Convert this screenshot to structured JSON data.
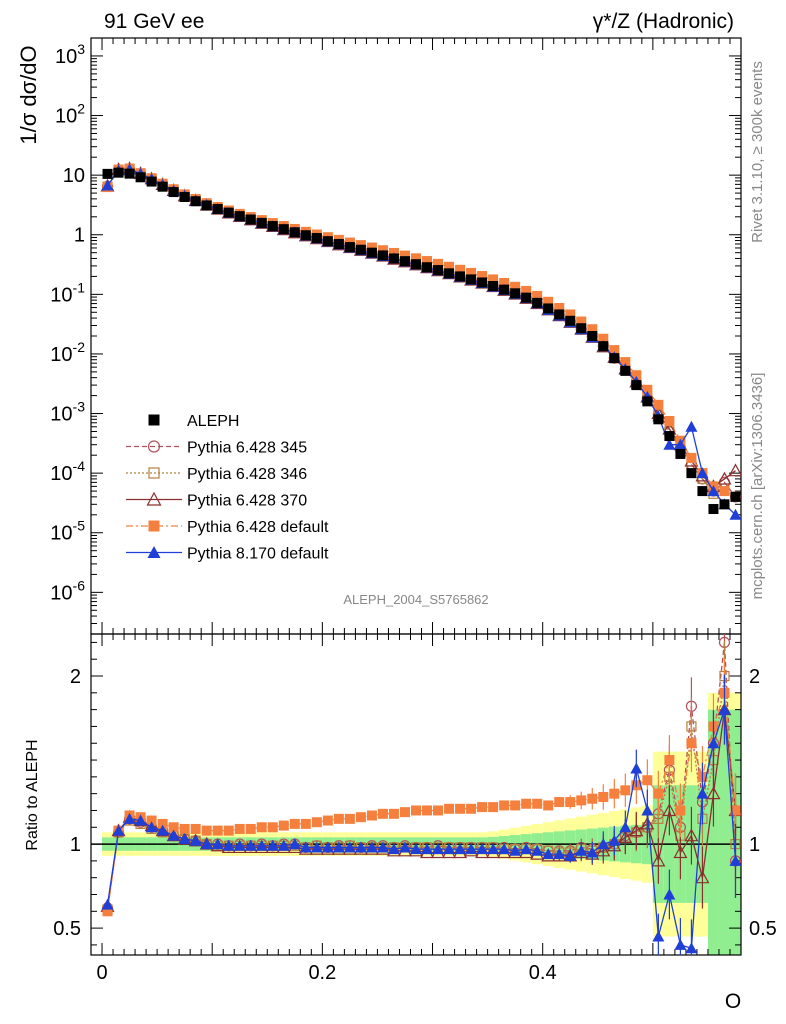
{
  "header": {
    "left": "91 GeV ee",
    "right": "γ*/Z (Hadronic)"
  },
  "side_labels": {
    "rivet": "Rivet 3.1.10, ≥ 300k events",
    "mcplots": "mcplots.cern.ch [arXiv:1306.3436]"
  },
  "watermark": "ALEPH_2004_S5765862",
  "chart_data": [
    {
      "type": "scatter",
      "title": "",
      "xlabel": "O",
      "ylabel": "1/σ dσ/dO",
      "yscale": "log",
      "xlim": [
        -0.01,
        0.58
      ],
      "ylim": [
        2e-07,
        2000
      ],
      "y_tick_labels": [
        "10^-6",
        "10^-5",
        "10^-4",
        "10^-3",
        "10^-2",
        "10^-1",
        "1",
        "10",
        "10^2",
        "10^3"
      ],
      "x_tick_labels": [
        "0",
        "0.2",
        "0.4"
      ],
      "legend_position": "lower-left",
      "x": [
        0.005,
        0.015,
        0.025,
        0.035,
        0.045,
        0.055,
        0.065,
        0.075,
        0.085,
        0.095,
        0.105,
        0.115,
        0.125,
        0.135,
        0.145,
        0.155,
        0.165,
        0.175,
        0.185,
        0.195,
        0.205,
        0.215,
        0.225,
        0.235,
        0.245,
        0.255,
        0.265,
        0.275,
        0.285,
        0.295,
        0.305,
        0.315,
        0.325,
        0.335,
        0.345,
        0.355,
        0.365,
        0.375,
        0.385,
        0.395,
        0.405,
        0.415,
        0.425,
        0.435,
        0.445,
        0.455,
        0.465,
        0.475,
        0.485,
        0.495,
        0.505,
        0.515,
        0.525,
        0.535,
        0.545,
        0.555,
        0.565,
        0.575
      ],
      "series": [
        {
          "name": "ALEPH",
          "values": [
            10.5,
            11.0,
            10.6,
            9.2,
            7.8,
            6.4,
            5.2,
            4.3,
            3.65,
            3.1,
            2.7,
            2.35,
            2.05,
            1.8,
            1.58,
            1.4,
            1.24,
            1.1,
            0.98,
            0.88,
            0.78,
            0.7,
            0.62,
            0.56,
            0.5,
            0.45,
            0.4,
            0.36,
            0.32,
            0.285,
            0.255,
            0.225,
            0.2,
            0.178,
            0.158,
            0.138,
            0.12,
            0.104,
            0.088,
            0.072,
            0.058,
            0.046,
            0.036,
            0.027,
            0.02,
            0.0135,
            0.0085,
            0.0052,
            0.003,
            0.0016,
            0.0008,
            0.00042,
            0.00021,
            0.0001,
            5e-05,
            2.5e-05,
            3e-05,
            4e-05
          ]
        },
        {
          "name": "Pythia 6.428 345",
          "values": [
            6.5,
            12.2,
            12.6,
            10.5,
            8.6,
            6.9,
            5.5,
            4.5,
            3.75,
            3.15,
            2.72,
            2.35,
            2.05,
            1.8,
            1.58,
            1.4,
            1.24,
            1.1,
            0.97,
            0.87,
            0.78,
            0.69,
            0.62,
            0.56,
            0.5,
            0.45,
            0.4,
            0.36,
            0.32,
            0.285,
            0.255,
            0.226,
            0.2,
            0.178,
            0.158,
            0.138,
            0.12,
            0.104,
            0.088,
            0.072,
            0.056,
            0.045,
            0.035,
            0.026,
            0.0195,
            0.0135,
            0.0085,
            0.0055,
            0.0032,
            0.0018,
            0.00095,
            0.0005,
            0.00026,
            0.00014,
            8e-05,
            5e-05,
            7e-05,
            4e-05
          ]
        },
        {
          "name": "Pythia 6.428 346",
          "values": [
            6.4,
            12.0,
            12.4,
            10.4,
            8.5,
            6.8,
            5.45,
            4.45,
            3.72,
            3.12,
            2.7,
            2.33,
            2.03,
            1.79,
            1.57,
            1.39,
            1.23,
            1.09,
            0.97,
            0.87,
            0.77,
            0.69,
            0.62,
            0.55,
            0.5,
            0.44,
            0.4,
            0.355,
            0.318,
            0.283,
            0.252,
            0.224,
            0.198,
            0.176,
            0.156,
            0.137,
            0.119,
            0.103,
            0.087,
            0.071,
            0.056,
            0.044,
            0.034,
            0.026,
            0.019,
            0.0132,
            0.0085,
            0.0054,
            0.0032,
            0.0018,
            0.00095,
            0.0005,
            0.00027,
            0.00014,
            8e-05,
            4.5e-05,
            5.5e-05,
            4e-05
          ]
        },
        {
          "name": "Pythia 6.428 370",
          "values": [
            6.6,
            12.5,
            12.9,
            10.7,
            8.7,
            7.0,
            5.55,
            4.5,
            3.75,
            3.15,
            2.7,
            2.33,
            2.03,
            1.78,
            1.56,
            1.38,
            1.22,
            1.08,
            0.96,
            0.86,
            0.77,
            0.68,
            0.61,
            0.55,
            0.49,
            0.44,
            0.39,
            0.352,
            0.314,
            0.28,
            0.25,
            0.222,
            0.196,
            0.174,
            0.155,
            0.135,
            0.117,
            0.101,
            0.086,
            0.07,
            0.055,
            0.044,
            0.034,
            0.026,
            0.019,
            0.0132,
            0.0088,
            0.0056,
            0.0034,
            0.0019,
            0.001,
            0.00055,
            0.0003,
            0.00016,
            9e-05,
            6e-05,
            8e-05,
            0.00011
          ]
        },
        {
          "name": "Pythia 6.428 default",
          "values": [
            6.3,
            12.4,
            12.9,
            10.8,
            8.9,
            7.2,
            5.8,
            4.75,
            3.98,
            3.38,
            2.92,
            2.55,
            2.24,
            1.98,
            1.76,
            1.57,
            1.4,
            1.25,
            1.12,
            1.01,
            0.91,
            0.82,
            0.74,
            0.67,
            0.61,
            0.55,
            0.495,
            0.447,
            0.402,
            0.362,
            0.325,
            0.29,
            0.258,
            0.229,
            0.203,
            0.178,
            0.155,
            0.134,
            0.114,
            0.094,
            0.075,
            0.059,
            0.046,
            0.035,
            0.026,
            0.018,
            0.0116,
            0.0073,
            0.0044,
            0.0025,
            0.0014,
            0.00075,
            0.00035,
            0.00018,
            0.0001,
            6e-05,
            5e-05,
            4e-05
          ]
        },
        {
          "name": "Pythia 8.170 default",
          "values": [
            6.7,
            12.0,
            12.5,
            10.6,
            8.6,
            6.9,
            5.5,
            4.5,
            3.75,
            3.15,
            2.7,
            2.33,
            2.04,
            1.79,
            1.57,
            1.39,
            1.24,
            1.1,
            0.97,
            0.87,
            0.77,
            0.69,
            0.61,
            0.55,
            0.49,
            0.44,
            0.4,
            0.355,
            0.316,
            0.282,
            0.252,
            0.222,
            0.197,
            0.175,
            0.155,
            0.135,
            0.118,
            0.102,
            0.087,
            0.071,
            0.055,
            0.044,
            0.034,
            0.026,
            0.019,
            0.0135,
            0.0088,
            0.0056,
            0.0034,
            0.0019,
            0.0009,
            0.0003,
            0.0003,
            0.0006,
            0.0001,
            5e-05,
            3e-05,
            2e-05
          ]
        }
      ]
    },
    {
      "type": "scatter",
      "title": "",
      "xlabel": "O",
      "ylabel": "Ratio to ALEPH",
      "xlim": [
        -0.01,
        0.58
      ],
      "ylim": [
        0.34,
        2.25
      ],
      "y_tick_labels": [
        "0.5",
        "1",
        "2"
      ],
      "x_tick_labels": [
        "0",
        "0.2",
        "0.4"
      ],
      "reference_line": 1,
      "x": [
        0.005,
        0.015,
        0.025,
        0.035,
        0.045,
        0.055,
        0.065,
        0.075,
        0.085,
        0.095,
        0.105,
        0.115,
        0.125,
        0.135,
        0.145,
        0.155,
        0.165,
        0.175,
        0.185,
        0.195,
        0.205,
        0.215,
        0.225,
        0.235,
        0.245,
        0.255,
        0.265,
        0.275,
        0.285,
        0.295,
        0.305,
        0.315,
        0.325,
        0.335,
        0.345,
        0.355,
        0.365,
        0.375,
        0.385,
        0.395,
        0.405,
        0.415,
        0.425,
        0.435,
        0.445,
        0.455,
        0.465,
        0.475,
        0.485,
        0.495,
        0.505,
        0.515,
        0.525,
        0.535,
        0.545,
        0.555,
        0.565,
        0.575
      ],
      "series": [
        {
          "name": "Pythia 6.428 345",
          "values": [
            0.62,
            1.07,
            1.15,
            1.13,
            1.1,
            1.08,
            1.05,
            1.03,
            1.02,
            1.0,
            1.0,
            0.99,
            1.0,
            0.99,
            1.0,
            0.99,
            1.0,
            1.0,
            0.98,
            0.99,
            0.98,
            0.99,
            0.99,
            0.98,
            0.99,
            0.99,
            0.98,
            0.99,
            0.98,
            0.98,
            0.99,
            0.98,
            0.98,
            0.98,
            0.98,
            0.98,
            0.98,
            0.97,
            0.98,
            0.97,
            0.96,
            0.96,
            0.96,
            0.98,
            0.97,
            0.98,
            1.0,
            1.05,
            1.07,
            1.1,
            1.18,
            1.44,
            1.1,
            1.82,
            1.25,
            1.6,
            2.2,
            0.9
          ]
        },
        {
          "name": "Pythia 6.428 346",
          "values": [
            0.61,
            1.07,
            1.14,
            1.12,
            1.09,
            1.07,
            1.05,
            1.03,
            1.02,
            1.0,
            0.99,
            0.99,
            0.99,
            0.99,
            0.99,
            0.99,
            0.99,
            0.99,
            0.98,
            0.99,
            0.98,
            0.98,
            0.99,
            0.98,
            0.98,
            0.98,
            0.98,
            0.98,
            0.98,
            0.98,
            0.98,
            0.98,
            0.98,
            0.98,
            0.98,
            0.98,
            0.97,
            0.97,
            0.97,
            0.97,
            0.96,
            0.95,
            0.95,
            0.97,
            0.96,
            0.98,
            1.0,
            1.04,
            1.07,
            1.1,
            1.15,
            1.4,
            1.05,
            1.7,
            1.15,
            1.5,
            2.0,
            1.0
          ]
        },
        {
          "name": "Pythia 6.428 370",
          "values": [
            0.63,
            1.08,
            1.16,
            1.14,
            1.11,
            1.08,
            1.05,
            1.03,
            1.02,
            1.0,
            0.99,
            0.98,
            0.98,
            0.98,
            0.98,
            0.98,
            0.98,
            0.98,
            0.97,
            0.97,
            0.97,
            0.97,
            0.97,
            0.97,
            0.97,
            0.97,
            0.96,
            0.96,
            0.96,
            0.95,
            0.95,
            0.95,
            0.95,
            0.96,
            0.95,
            0.95,
            0.95,
            0.95,
            0.95,
            0.94,
            0.93,
            0.93,
            0.93,
            0.95,
            0.94,
            0.96,
            0.99,
            1.04,
            1.08,
            1.12,
            0.9,
            1.2,
            0.95,
            1.05,
            0.8,
            1.3,
            1.8,
            1.2
          ]
        },
        {
          "name": "Pythia 6.428 default",
          "values": [
            0.6,
            1.08,
            1.17,
            1.16,
            1.14,
            1.12,
            1.1,
            1.09,
            1.09,
            1.08,
            1.08,
            1.08,
            1.09,
            1.09,
            1.1,
            1.1,
            1.11,
            1.12,
            1.12,
            1.13,
            1.14,
            1.15,
            1.15,
            1.16,
            1.17,
            1.18,
            1.18,
            1.19,
            1.2,
            1.2,
            1.2,
            1.21,
            1.21,
            1.21,
            1.22,
            1.22,
            1.23,
            1.23,
            1.24,
            1.24,
            1.23,
            1.25,
            1.25,
            1.26,
            1.27,
            1.28,
            1.3,
            1.32,
            1.35,
            1.38,
            1.3,
            1.5,
            1.2,
            1.6,
            1.4,
            1.7,
            1.9,
            1.2
          ]
        },
        {
          "name": "Pythia 8.170 default",
          "values": [
            0.64,
            1.08,
            1.15,
            1.14,
            1.1,
            1.08,
            1.05,
            1.03,
            1.02,
            1.0,
            1.0,
            0.99,
            0.99,
            0.99,
            0.99,
            0.99,
            0.99,
            1.0,
            0.98,
            0.98,
            0.98,
            0.98,
            0.98,
            0.98,
            0.98,
            0.98,
            0.97,
            0.98,
            0.97,
            0.97,
            0.97,
            0.97,
            0.97,
            0.97,
            0.97,
            0.97,
            0.97,
            0.96,
            0.97,
            0.96,
            0.94,
            0.94,
            0.93,
            0.96,
            0.95,
            1.0,
            1.02,
            1.1,
            1.45,
            1.2,
            0.45,
            0.7,
            0.4,
            0.38,
            1.3,
            1.6,
            1.8,
            0.9
          ]
        }
      ]
    }
  ],
  "legend": [
    {
      "label": "ALEPH",
      "color": "#000000",
      "marker": "square-filled",
      "line": "none"
    },
    {
      "label": "Pythia 6.428 345",
      "color": "#b5515b",
      "marker": "circle-open",
      "line": "dashed"
    },
    {
      "label": "Pythia 6.428 346",
      "color": "#b5813f",
      "marker": "square-open",
      "line": "dotted"
    },
    {
      "label": "Pythia 6.428 370",
      "color": "#8b2e2e",
      "marker": "triangle-open",
      "line": "solid"
    },
    {
      "label": "Pythia 6.428 default",
      "color": "#f5803e",
      "marker": "square-filled",
      "line": "dashdot"
    },
    {
      "label": "Pythia 8.170 default",
      "color": "#1f3fd6",
      "marker": "triangle-filled",
      "line": "solid"
    }
  ],
  "colors": {
    "band_inner": "#90ee90",
    "band_outer": "#ffff99"
  }
}
